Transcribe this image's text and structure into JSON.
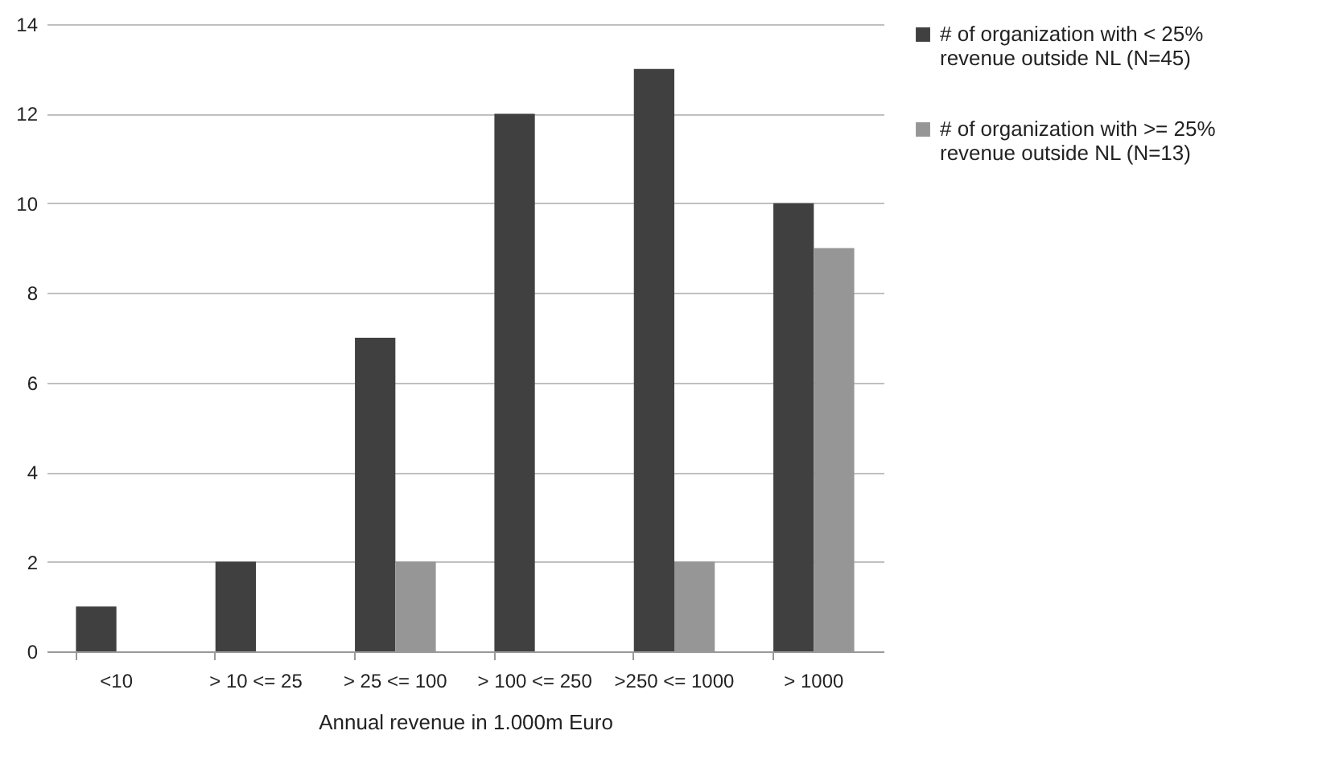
{
  "chart_data": {
    "type": "bar",
    "categories": [
      "<10",
      "> 10 <= 25",
      "> 25 <= 100",
      "> 100 <= 250",
      ">250 <= 1000",
      "> 1000"
    ],
    "series": [
      {
        "name": "# of organization with < 25% revenue outside NL (N=45)",
        "color": "#404040",
        "values": [
          1,
          2,
          7,
          12,
          13,
          10
        ]
      },
      {
        "name": "# of organization with >= 25% revenue outside NL (N=13)",
        "color": "#969696",
        "values": [
          null,
          null,
          2,
          null,
          2,
          9
        ]
      }
    ],
    "xlabel": "Annual revenue in 1.000m Euro",
    "ylim": [
      0,
      14
    ],
    "yticks": [
      0,
      2,
      4,
      6,
      8,
      10,
      12,
      14
    ],
    "grid": "y",
    "legend": "right"
  }
}
